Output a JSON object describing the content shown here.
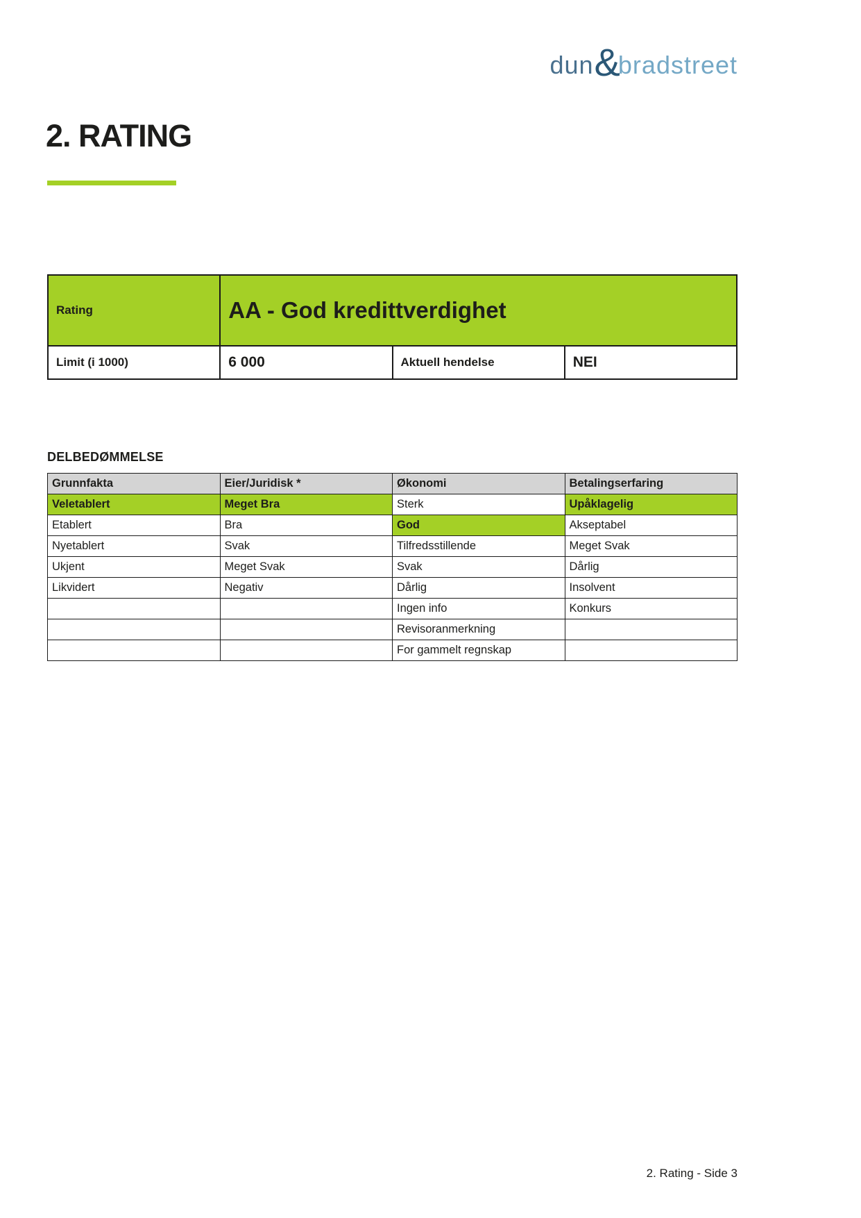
{
  "logo": {
    "word1": "dun",
    "ampersand": "&",
    "word2": "bradstreet"
  },
  "heading": {
    "title": "2. RATING"
  },
  "rating_card": {
    "rating_label": "Rating",
    "rating_value": "AA - God kredittverdighet",
    "limit_label": "Limit (i 1000)",
    "limit_value": "6 000",
    "event_label": "Aktuell hendelse",
    "event_value": "NEI"
  },
  "delbedommelse": {
    "title": "DELBEDØMMELSE",
    "columns": [
      "Grunnfakta",
      "Eier/Juridisk *",
      "Økonomi",
      "Betalingserfaring"
    ],
    "rows": [
      {
        "cells": [
          {
            "text": "Veletablert",
            "hl": true
          },
          {
            "text": "Meget Bra",
            "hl": true
          },
          {
            "text": "Sterk",
            "hl": false
          },
          {
            "text": "Upåklagelig",
            "hl": true
          }
        ]
      },
      {
        "cells": [
          {
            "text": "Etablert",
            "hl": false
          },
          {
            "text": "Bra",
            "hl": false
          },
          {
            "text": "God",
            "hl": true
          },
          {
            "text": "Akseptabel",
            "hl": false
          }
        ]
      },
      {
        "cells": [
          {
            "text": "Nyetablert",
            "hl": false
          },
          {
            "text": "Svak",
            "hl": false
          },
          {
            "text": "Tilfredsstillende",
            "hl": false
          },
          {
            "text": "Meget Svak",
            "hl": false
          }
        ]
      },
      {
        "cells": [
          {
            "text": "Ukjent",
            "hl": false
          },
          {
            "text": "Meget Svak",
            "hl": false
          },
          {
            "text": "Svak",
            "hl": false
          },
          {
            "text": "Dårlig",
            "hl": false
          }
        ]
      },
      {
        "cells": [
          {
            "text": "Likvidert",
            "hl": false
          },
          {
            "text": "Negativ",
            "hl": false
          },
          {
            "text": "Dårlig",
            "hl": false
          },
          {
            "text": "Insolvent",
            "hl": false
          }
        ]
      },
      {
        "cells": [
          {
            "text": "",
            "hl": false
          },
          {
            "text": "",
            "hl": false
          },
          {
            "text": "Ingen info",
            "hl": false
          },
          {
            "text": "Konkurs",
            "hl": false
          }
        ]
      },
      {
        "cells": [
          {
            "text": "",
            "hl": false
          },
          {
            "text": "",
            "hl": false
          },
          {
            "text": "Revisoranmerkning",
            "hl": false
          },
          {
            "text": "",
            "hl": false
          }
        ]
      },
      {
        "cells": [
          {
            "text": "",
            "hl": false
          },
          {
            "text": "",
            "hl": false
          },
          {
            "text": "For gammelt regnskap",
            "hl": false
          },
          {
            "text": "",
            "hl": false
          }
        ]
      }
    ]
  },
  "footer": {
    "text": "2. Rating - Side 3"
  },
  "colors": {
    "accent_green": "#a4d026",
    "header_gray": "#d4d4d4",
    "border_black": "#1a1a1a",
    "text_dark": "#1d1d1b",
    "logo_blue_mid": "#49708e",
    "logo_blue_dark": "#2b5877",
    "logo_blue_light": "#74a8c6"
  }
}
